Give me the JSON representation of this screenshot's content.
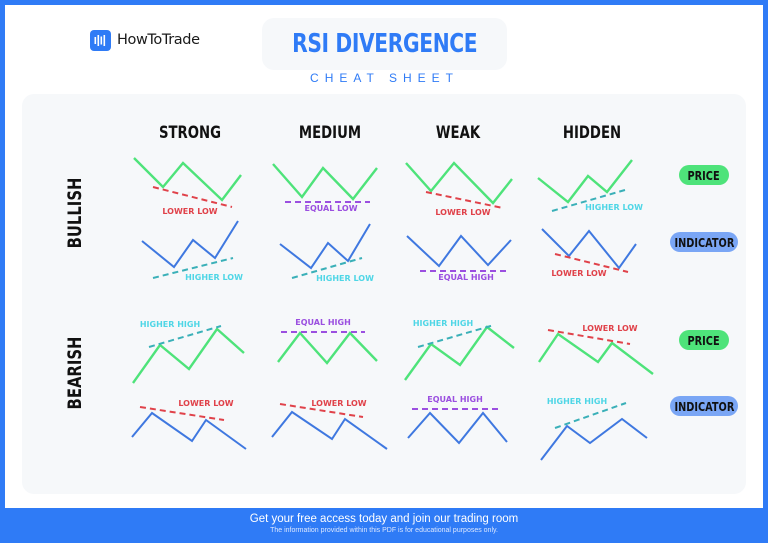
{
  "brand": {
    "name": "HowToTrade",
    "icon": "bar-chart-logo-icon"
  },
  "header": {
    "title": "RSI DIVERGENCE",
    "subtitle": "CHEAT SHEET"
  },
  "columns": [
    "STRONG",
    "MEDIUM",
    "WEAK",
    "HIDDEN"
  ],
  "rows": [
    "BULLISH",
    "BEARISH"
  ],
  "badges": {
    "price": "PRICE",
    "indicator": "INDICATOR"
  },
  "colors": {
    "price_line": "#4ee37a",
    "indicator_line": "#3f78e0",
    "lower": "#e0424a",
    "equal": "#9b4fe0",
    "higher": "#3ab0b8",
    "higher_text": "#4fd6e6",
    "brand": "#2f7bf6"
  },
  "annotations": {
    "bullish_price": [
      "LOWER LOW",
      "EQUAL LOW",
      "LOWER LOW",
      "HIGHER LOW"
    ],
    "bullish_indicator": [
      "HIGHER LOW",
      "HIGHER LOW",
      "EQUAL HIGH",
      "LOWER LOW"
    ],
    "bearish_price": [
      "HIGHER HIGH",
      "EQUAL HIGH",
      "HIGHER HIGH",
      "LOWER LOW"
    ],
    "bearish_indicator": [
      "LOWER LOW",
      "LOWER LOW",
      "EQUAL HIGH",
      "HIGHER HIGH"
    ]
  },
  "footer": {
    "cta": "Get your free access today and join our trading room",
    "disclaimer": "The information provided within this PDF is for educational purposes only."
  }
}
